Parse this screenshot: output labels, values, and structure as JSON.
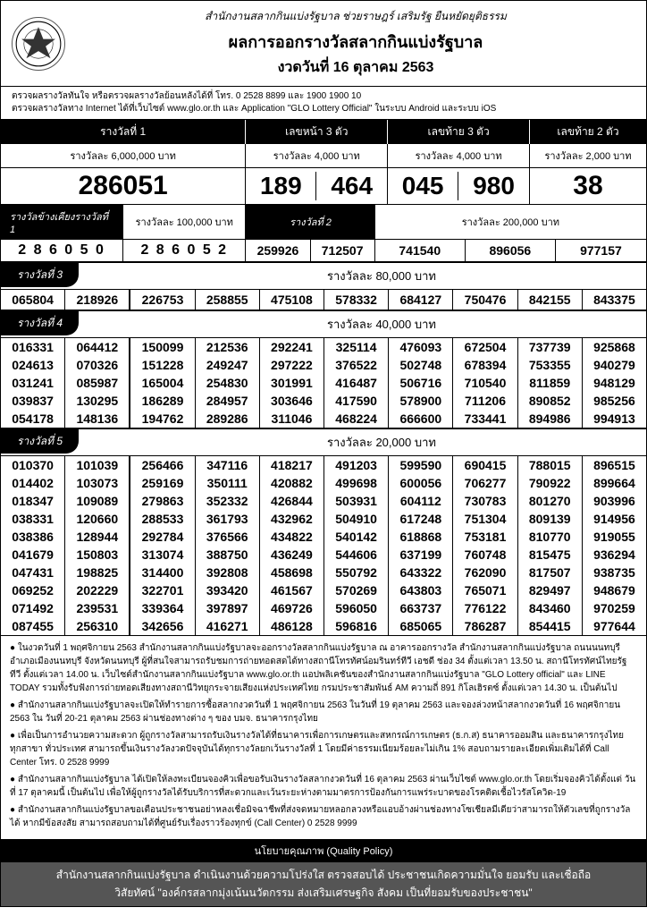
{
  "header": {
    "subline": "สำนักงานสลากกินแบ่งรัฐบาล  ช่วยราษฎร์  เสริมรัฐ  ยืนหยัดยุติธรรม",
    "title": "ผลการออกรางวัลสลากกินแบ่งรัฐบาล",
    "date": "งวดวันที่ 16 ตุลาคม 2563"
  },
  "check": {
    "line1": "ตรวจผลรางวัลทันใจ  หรือตรวจผลรางวัลย้อนหลังได้ที่  โทร. 0 2528 8899 และ 1900 1900 10",
    "line2": "ตรวจผลรางวัลทาง Internet ได้ที่เว็บไซต์  www.glo.or.th และ Application \"GLO Lottery Official\" ในระบบ Android และระบบ iOS"
  },
  "labels": {
    "prize1": "รางวัลที่ 1",
    "front3": "เลขหน้า 3 ตัว",
    "back3": "เลขท้าย 3 ตัว",
    "back2": "เลขท้าย 2 ตัว",
    "prize1_amt": "รางวัลละ  6,000,000  บาท",
    "front3_amt": "รางวัลละ  4,000  บาท",
    "back3_amt": "รางวัลละ  4,000  บาท",
    "back2_amt": "รางวัลละ  2,000  บาท",
    "near1": "รางวัลข้างเคียงรางวัลที่ 1",
    "near1_amt": "รางวัลละ 100,000 บาท",
    "prize2": "รางวัลที่  2",
    "prize2_amt": "รางวัลละ 200,000 บาท",
    "prize3": "รางวัลที่  3",
    "prize3_amt": "รางวัลละ  80,000  บาท",
    "prize4": "รางวัลที่  4",
    "prize4_amt": "รางวัลละ  40,000  บาท",
    "prize5": "รางวัลที่  5",
    "prize5_amt": "รางวัลละ  20,000  บาท"
  },
  "numbers": {
    "prize1": "286051",
    "front3": [
      "189",
      "464"
    ],
    "back3": [
      "045",
      "980"
    ],
    "back2": "38",
    "near1": [
      "2 8 6 0 5 0",
      "2 8 6 0 5 2"
    ],
    "prize2": [
      "259926",
      "712507",
      "741540",
      "896056",
      "977157"
    ],
    "prize3": [
      "065804",
      "218926",
      "226753",
      "258855",
      "475108",
      "578332",
      "684127",
      "750476",
      "842155",
      "843375"
    ],
    "prize4": [
      [
        "016331",
        "064412",
        "150099",
        "212536",
        "292241",
        "325114",
        "476093",
        "672504",
        "737739",
        "925868"
      ],
      [
        "024613",
        "070326",
        "151228",
        "249247",
        "297222",
        "376522",
        "502748",
        "678394",
        "753355",
        "940279"
      ],
      [
        "031241",
        "085987",
        "165004",
        "254830",
        "301991",
        "416487",
        "506716",
        "710540",
        "811859",
        "948129"
      ],
      [
        "039837",
        "130295",
        "186289",
        "284957",
        "303646",
        "417590",
        "578900",
        "711206",
        "890852",
        "985256"
      ],
      [
        "054178",
        "148136",
        "194762",
        "289286",
        "311046",
        "468224",
        "666600",
        "733441",
        "894986",
        "994913"
      ]
    ],
    "prize5": [
      [
        "010370",
        "101039",
        "256466",
        "347116",
        "418217",
        "491203",
        "599590",
        "690415",
        "788015",
        "896515"
      ],
      [
        "014402",
        "103073",
        "259169",
        "350111",
        "420882",
        "499698",
        "600056",
        "706277",
        "790922",
        "899664"
      ],
      [
        "018347",
        "109089",
        "279863",
        "352332",
        "426844",
        "503931",
        "604112",
        "730783",
        "801270",
        "903996"
      ],
      [
        "038331",
        "120660",
        "288533",
        "361793",
        "432962",
        "504910",
        "617248",
        "751304",
        "809139",
        "914956"
      ],
      [
        "038386",
        "128944",
        "292784",
        "376566",
        "434822",
        "540142",
        "618868",
        "753181",
        "810770",
        "919055"
      ],
      [
        "041679",
        "150803",
        "313074",
        "388750",
        "436249",
        "544606",
        "637199",
        "760748",
        "815475",
        "936294"
      ],
      [
        "047431",
        "198825",
        "314400",
        "392808",
        "458698",
        "550792",
        "643322",
        "762090",
        "817507",
        "938735"
      ],
      [
        "069252",
        "202229",
        "322701",
        "393420",
        "461567",
        "570269",
        "643803",
        "765071",
        "829497",
        "948679"
      ],
      [
        "071492",
        "239531",
        "339364",
        "397897",
        "469726",
        "596050",
        "663737",
        "776122",
        "843460",
        "970259"
      ],
      [
        "087455",
        "256310",
        "342656",
        "416271",
        "486128",
        "596816",
        "685065",
        "786287",
        "854415",
        "977644"
      ]
    ]
  },
  "notes": {
    "n1": "● ในงวดวันที่ 1 พฤศจิกายน 2563 สำนักงานสลากกินแบ่งรัฐบาลจะออกรางวัลสลากกินแบ่งรัฐบาล ณ อาคารออกรางวัล สำนักงานสลากกินแบ่งรัฐบาล ถนนนนทบุรี อำเภอเมืองนนทบุรี จังหวัดนนทบุรี ผู้ที่สนใจสามารถรับชมการถ่ายทอดสดได้ทางสถานีโทรทัศน์อมรินทร์ทีวี เอชดี ช่อง 34 ตั้งแต่เวลา 13.50 น. สถานีโทรทัศน์ไทยรัฐทีวี ตั้งแต่เวลา 14.00 น. เว็บไซต์สำนักงานสลากกินแบ่งรัฐบาล www.glo.or.th แอปพลิเคชันของสำนักงานสลากกินแบ่งรัฐบาล \"GLO Lottery official\" และ LINE TODAY รวมทั้งรับฟังการถ่ายทอดเสียงทางสถานีวิทยุกระจายเสียงแห่งประเทศไทย  กรมประชาสัมพันธ์ AM ความถี่ 891 กิโลเฮิรตซ์  ตั้งแต่เวลา 14.30 น. เป็นต้นไป",
    "n2": "● สำนักงานสลากกินแบ่งรัฐบาลจะเปิดให้ทำรายการซื้อสลากงวดวันที่ 1 พฤศจิกายน 2563 ในวันที่ 19 ตุลาคม 2563 และจองล่วงหน้าสลากงวดวันที่ 16 พฤศจิกายน 2563 ใน วันที่ 20-21 ตุลาคม 2563 ผ่านช่องทางต่าง ๆ ของ บมจ. ธนาคารกรุงไทย",
    "n3": "● เพื่อเป็นการอำนวยความสะดวก ผู้ถูกรางวัลสามารถรับเงินรางวัลได้ที่ธนาคารเพื่อการเกษตรและสหกรณ์การเกษตร (ธ.ก.ส) ธนาคารออมสิน และธนาคารกรุงไทย ทุกสาขา ทั่วประเทศ สามารถขึ้นเงินรางวัลงวดปัจจุบันได้ทุกรางวัลยกเว้นรางวัลที่ 1 โดยมีค่าธรรมเนียมร้อยละไม่เกิน 1% สอบถามรายละเอียดเพิ่มเติมได้ที่ Call Center โทร. 0 2528 9999",
    "n4": "● สำนักงานสลากกินแบ่งรัฐบาล ได้เปิดให้ลงทะเบียนจองคิวเพื่อขอรับเงินรางวัลสลากงวดวันที่ 16 ตุลาคม 2563 ผ่านเว็บไซต์ www.glo.or.th โดยเริ่มจองคิวได้ตั้งแต่ วันที่ 17 ตุลาคมนี้ เป็นต้นไป เพื่อให้ผู้ถูกรางวัลได้รับบริการที่สะดวกและเว้นระยะห่างตามมาตรการป้องกันการแพร่ระบาดของโรคติดเชื้อไวรัสโควิด-19",
    "n5": "● สำนักงานสลากกินแบ่งรัฐบาลขอเตือนประชาชนอย่าหลงเชื่อมิจฉาชีพที่ส่งจดหมายหลอกลวงหรือแอบอ้างผ่านช่องทางโซเชียลมีเดียว่าสามารถให้ตัวเลขที่ถูกรางวัลได้ หากมีข้อสงสัย สามารถสอบถามได้ที่ศูนย์รับเรื่องราวร้องทุกข์ (Call Center) 0 2528 9999"
  },
  "footer": {
    "quality": "นโยบายคุณภาพ (Quality Policy)",
    "line1": "สำนักงานสลากกินแบ่งรัฐบาล ดำเนินงานด้วยความโปร่งใส ตรวจสอบได้ ประชาชนเกิดความมั่นใจ ยอมรับ และเชื่อถือ",
    "line2": "วิสัยทัศน์ \"องค์กรสลากมุ่งเน้นนวัตกรรม ส่งเสริมเศรษฐกิจ สังคม เป็นที่ยอมรับของประชาชน\""
  },
  "colors": {
    "black": "#000000",
    "white": "#ffffff",
    "gray": "#555555"
  }
}
